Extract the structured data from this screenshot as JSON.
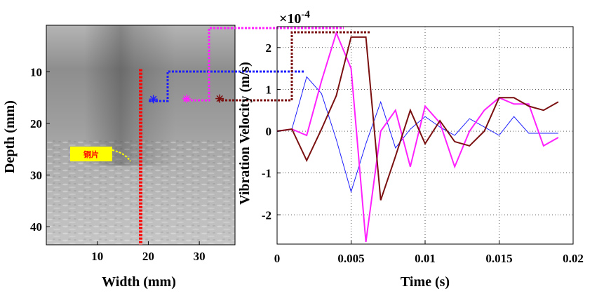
{
  "chart_data": [
    {
      "type": "image",
      "xlabel": "Width (mm)",
      "ylabel": "Depth (mm)",
      "xticks": [
        "10",
        "20",
        "30"
      ],
      "yticks": [
        "10",
        "20",
        "30",
        "40"
      ],
      "xlim": [
        0,
        37
      ],
      "ylim": [
        43.5,
        1
      ],
      "annotation": "铜片",
      "markers": [
        {
          "x": 21,
          "y": 15.3,
          "color": "#2020ff"
        },
        {
          "x": 27.5,
          "y": 15.2,
          "color": "#ff22ff"
        },
        {
          "x": 34,
          "y": 15.2,
          "color": "#7a1010"
        }
      ],
      "red_line_x": 18.5
    },
    {
      "type": "line",
      "xlabel": "Time (s)",
      "ylabel": "Vibration Velocity (m/s)",
      "exponent": "×10",
      "exponent_power": "-4",
      "xlim": [
        0,
        0.02
      ],
      "ylim": [
        -2.7,
        2.5
      ],
      "xticks": [
        "0",
        "0.005",
        "0.01",
        "0.015",
        "0.02"
      ],
      "yticks": [
        "-2",
        "-1",
        "0",
        "1",
        "2"
      ],
      "grid": true,
      "x": [
        0,
        0.001,
        0.002,
        0.003,
        0.004,
        0.005,
        0.006,
        0.007,
        0.008,
        0.009,
        0.01,
        0.011,
        0.012,
        0.013,
        0.014,
        0.015,
        0.016,
        0.017,
        0.018,
        0.019
      ],
      "series": [
        {
          "color": "#1e1eff",
          "values": [
            0,
            0.05,
            1.3,
            0.9,
            -0.2,
            -1.45,
            -0.3,
            0.7,
            -0.4,
            0.05,
            0.35,
            0.1,
            -0.1,
            0.3,
            0.1,
            -0.1,
            0.35,
            -0.05,
            -0.05,
            -0.05
          ]
        },
        {
          "color": "#ff22ff",
          "values": [
            0,
            0.05,
            -0.1,
            1.2,
            2.35,
            1.5,
            -2.65,
            0,
            0.5,
            -0.85,
            0.6,
            0.2,
            -0.85,
            0,
            0.5,
            0.8,
            0.65,
            0.65,
            -0.35,
            -0.15
          ]
        },
        {
          "color": "#7a1010",
          "values": [
            0,
            0.05,
            -0.7,
            0.05,
            0.85,
            2.25,
            2.25,
            -1.65,
            -0.6,
            0.5,
            -0.3,
            0.25,
            -0.25,
            -0.35,
            0,
            0.8,
            0.8,
            0.6,
            0.5,
            0.7
          ]
        }
      ]
    }
  ]
}
